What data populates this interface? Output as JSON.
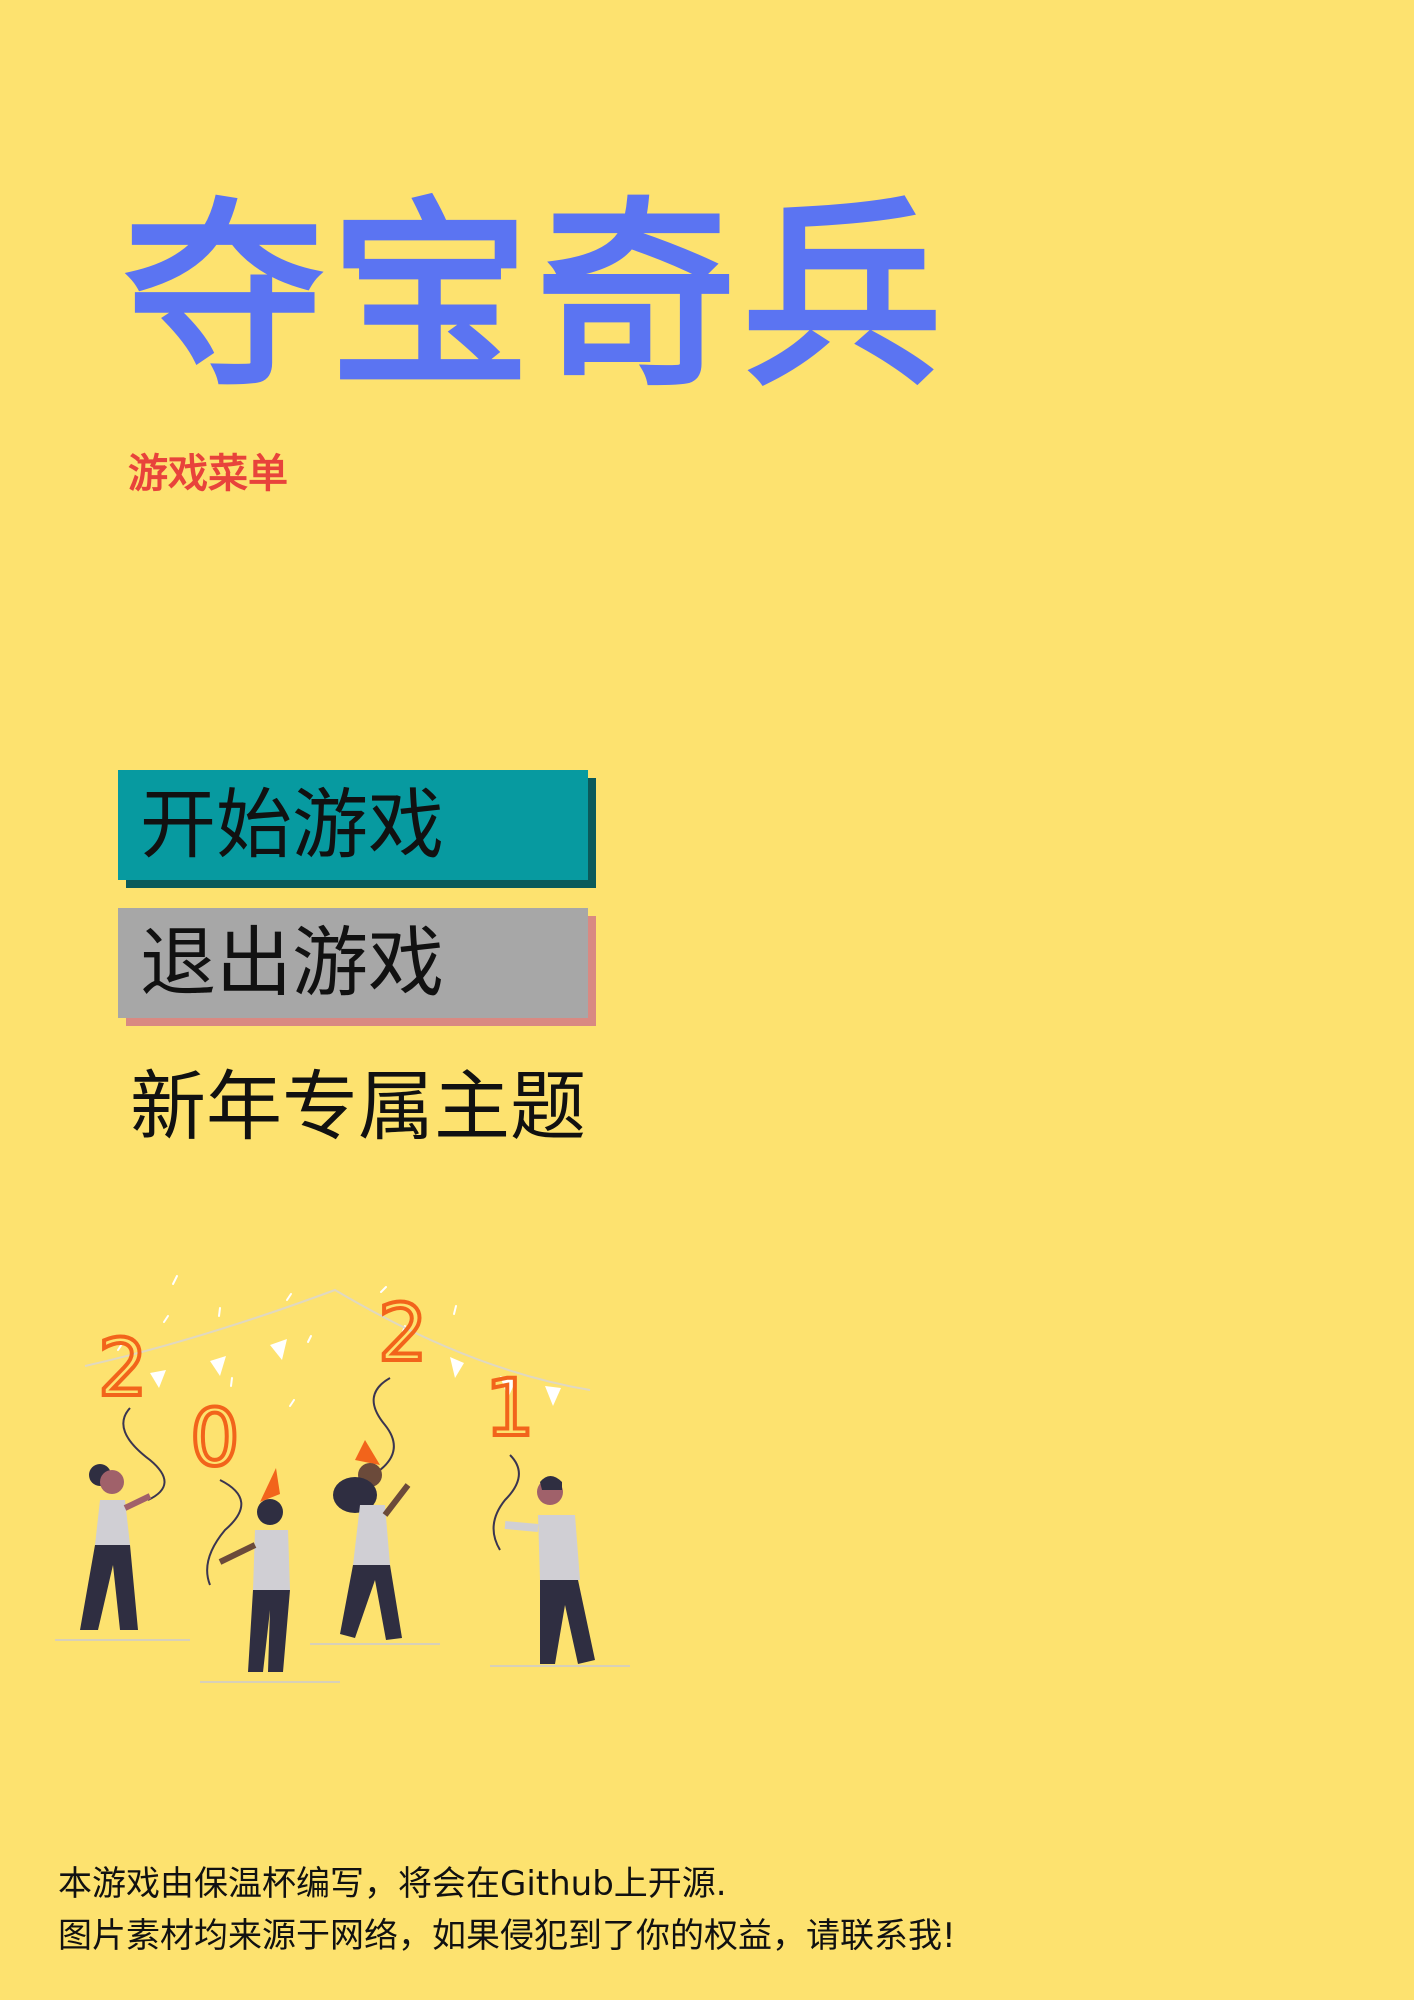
{
  "title": "夺宝奇兵",
  "subtitle": "游戏菜单",
  "menu": {
    "start_label": "开始游戏",
    "quit_label": "退出游戏",
    "theme_label": "新年专属主题"
  },
  "illustration": {
    "digits": [
      "2",
      "0",
      "2",
      "1"
    ]
  },
  "footer": {
    "line1": "本游戏由保温杯编写，将会在Github上开源.",
    "line2": "图片素材均来源于网络，如果侵犯到了你的权益，请联系我!"
  },
  "colors": {
    "background": "#fde26f",
    "title": "#5b74f2",
    "subtitle": "#e8433b",
    "start_button": "#079aa0",
    "quit_button": "#a7a7a7",
    "balloon": "#f2641b"
  }
}
